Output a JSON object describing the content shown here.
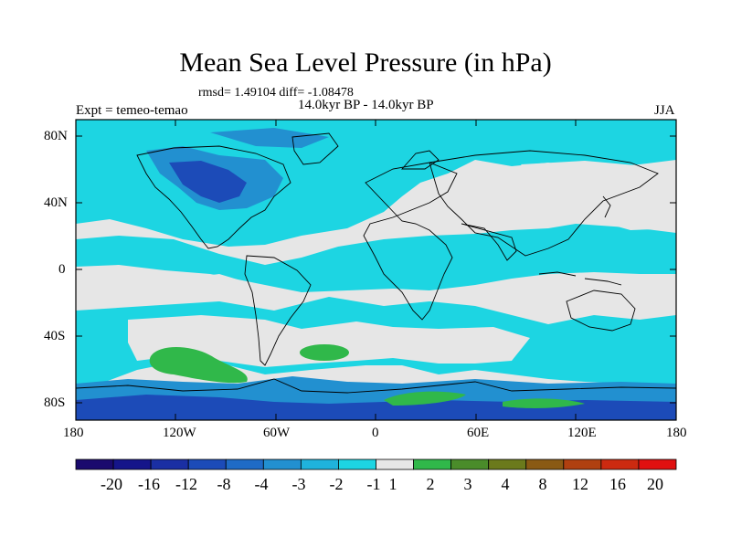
{
  "title": "Mean Sea Level Pressure (in hPa)",
  "stats": "rmsd= 1.49104 diff= -1.08478",
  "period": "14.0kyr BP - 14.0kyr BP",
  "expt": "Expt = temeo-temao",
  "season": "JJA",
  "lat_labels": [
    "80N",
    "40N",
    "0",
    "40S",
    "80S"
  ],
  "lon_labels": [
    "180",
    "120W",
    "60W",
    "0",
    "60E",
    "120E",
    "180"
  ],
  "colorbar": {
    "labels": [
      "-20",
      "-16",
      "-12",
      "-8",
      "-4",
      "-3",
      "-2",
      "-1",
      "1",
      "2",
      "3",
      "4",
      "8",
      "12",
      "16",
      "20"
    ],
    "colors": [
      "#1a0a6e",
      "#15158a",
      "#1a2fa3",
      "#1c4bb8",
      "#1f6bc6",
      "#2290d0",
      "#1fb3dc",
      "#1dd5e2",
      "#e6e6e6",
      "#30b84a",
      "#4a8c2a",
      "#6b7a1c",
      "#8a5a14",
      "#b04010",
      "#cc2a10",
      "#e01010"
    ]
  },
  "colors": {
    "ocean_neutral": "#e6e6e6",
    "light_blue": "#1dd5e2",
    "mid_blue": "#1fb3dc",
    "blue": "#2290d0",
    "dark_blue": "#1c4bb8",
    "green": "#30b84a"
  }
}
